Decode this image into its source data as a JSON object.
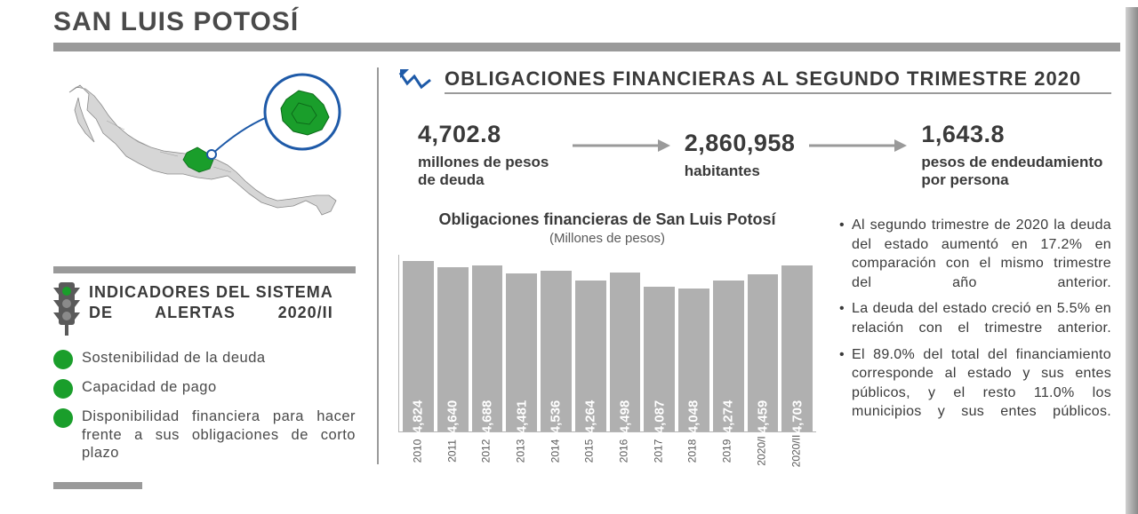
{
  "title": "SAN LUIS POTOSÍ",
  "colors": {
    "accent_green": "#1a9e2b",
    "bar_gray": "#b0b0b0",
    "title_gray": "#4a4a4a",
    "rule_gray": "#9a9a9a",
    "trend_blue": "#1e5aa8"
  },
  "alerts": {
    "title_l1": "INDICADORES DEL SISTEMA",
    "title_l2": "DE ALERTAS 2020/II",
    "items": [
      {
        "label": "Sostenibilidad de la deuda",
        "color": "#1a9e2b"
      },
      {
        "label": "Capacidad de pago",
        "color": "#1a9e2b"
      },
      {
        "label": "Disponibilidad financiera para hacer frente  a sus obligaciones de corto plazo",
        "color": "#1a9e2b"
      }
    ]
  },
  "section_title": "OBLIGACIONES FINANCIERAS AL SEGUNDO TRIMESTRE 2020",
  "stats": [
    {
      "value": "4,702.8",
      "label": "millones de pesos de deuda"
    },
    {
      "value": "2,860,958",
      "label": "habitantes"
    },
    {
      "value": "1,643.8",
      "label": "pesos de endeudamiento por persona"
    }
  ],
  "chart": {
    "title": "Obligaciones financieras de San Luis Potosí",
    "subtitle": "(Millones de pesos)",
    "type": "bar",
    "bar_color": "#b0b0b0",
    "value_text_color": "#ffffff",
    "max": 5000,
    "categories": [
      "2010",
      "2011",
      "2012",
      "2013",
      "2014",
      "2015",
      "2016",
      "2017",
      "2018",
      "2019",
      "2020/I",
      "2020/II"
    ],
    "values": [
      4824,
      4640,
      4688,
      4481,
      4536,
      4264,
      4498,
      4087,
      4048,
      4274,
      4459,
      4703
    ],
    "labels": [
      "4,824",
      "4,640",
      "4,688",
      "4,481",
      "4,536",
      "4,264",
      "4,498",
      "4,087",
      "4,048",
      "4,274",
      "4,459",
      "4,703"
    ]
  },
  "bullets": [
    "Al segundo trimestre de 2020 la deuda del estado aumentó en 17.2% en comparación con el mismo trimestre del año anterior.",
    "La deuda del estado creció en 5.5% en relación con el trimestre anterior.",
    "El 89.0% del total del financiamiento corresponde al estado y sus entes públicos, y el resto 11.0% los municipios y sus entes públicos."
  ]
}
